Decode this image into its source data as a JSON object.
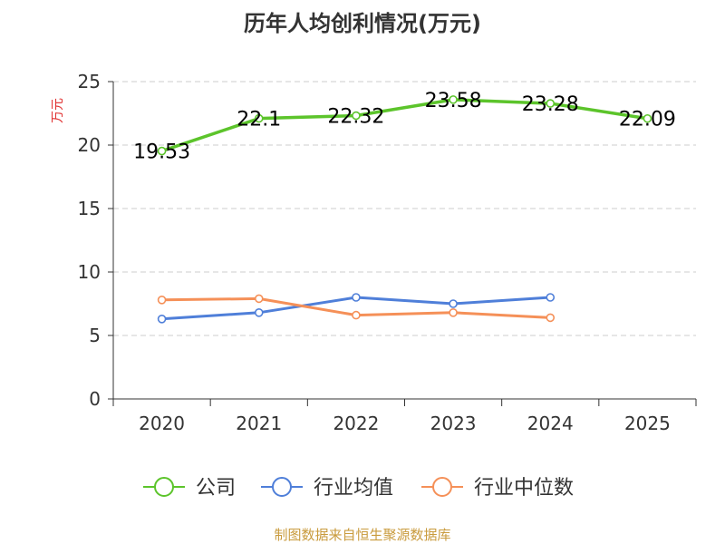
{
  "chart_data": {
    "type": "line",
    "title": "历年人均创利情况(万元)",
    "ylabel": "万元",
    "categories": [
      "2020",
      "2021",
      "2022",
      "2023",
      "2024",
      "2025"
    ],
    "ylim": [
      0,
      25
    ],
    "yticks": [
      0,
      5,
      10,
      15,
      20,
      25
    ],
    "grid": true,
    "legend_position": "bottom",
    "series": [
      {
        "name": "公司",
        "color": "#5cc42b",
        "values": [
          19.53,
          22.1,
          22.32,
          23.58,
          23.28,
          22.09
        ],
        "data_labels": [
          "19.53",
          "22.1",
          "22.32",
          "23.58",
          "23.28",
          "22.09"
        ]
      },
      {
        "name": "行业均值",
        "color": "#4f7fd9",
        "values": [
          6.3,
          6.8,
          8.0,
          7.5,
          8.0,
          null
        ]
      },
      {
        "name": "行业中位数",
        "color": "#f59058",
        "values": [
          7.8,
          7.9,
          6.6,
          6.8,
          6.4,
          null
        ]
      }
    ]
  },
  "footer": {
    "source": "制图数据来自恒生聚源数据库"
  },
  "colors": {
    "title": "#333333",
    "ylabel": "#e03030",
    "axis": "#333333",
    "grid": "#cccccc",
    "footer": "#c99b3d"
  }
}
